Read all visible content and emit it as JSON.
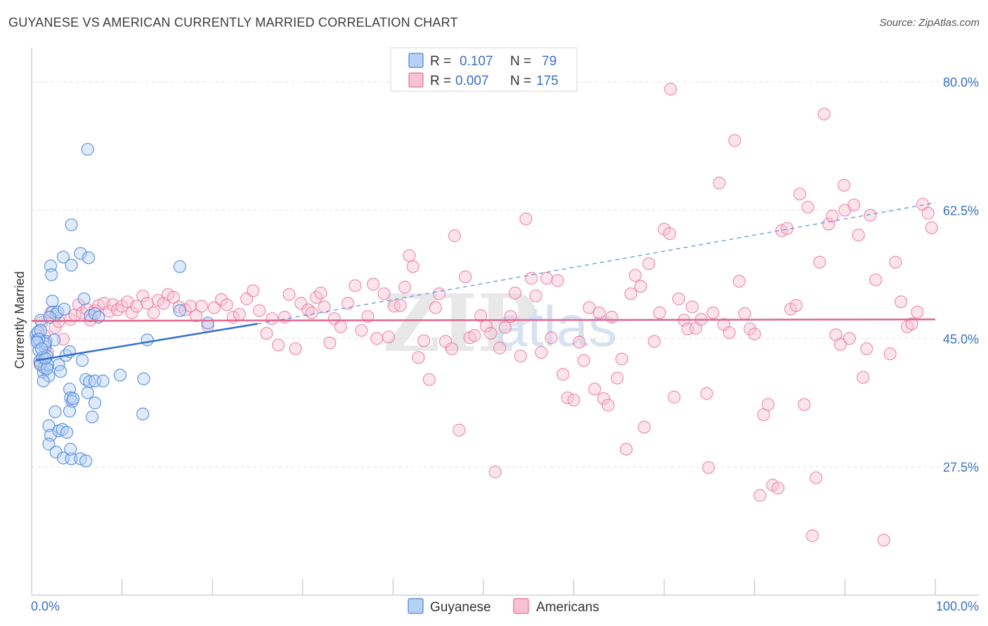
{
  "header": {
    "title": "GUYANESE VS AMERICAN CURRENTLY MARRIED CORRELATION CHART",
    "source": "Source: ZipAtlas.com"
  },
  "watermark": {
    "zip": "ZIP",
    "atlas": "atlas"
  },
  "colors": {
    "blue": "#4a86d8",
    "blue_fill": "#b7d0f3",
    "pink": "#e86f99",
    "pink_fill": "#f7c3d4",
    "axis_label": "#3a70c4",
    "grid": "#e2e2e2"
  },
  "legend_top": {
    "rows": [
      {
        "r_label": "R =",
        "r_value": "0.107",
        "n_label": "N =",
        "n_value": "79",
        "series": "Guyanese"
      },
      {
        "r_label": "R =",
        "r_value": "0.007",
        "n_label": "N =",
        "n_value": "175",
        "series": "Americans"
      }
    ]
  },
  "chart_data": {
    "type": "scatter",
    "title": "GUYANESE VS AMERICAN CURRENTLY MARRIED CORRELATION CHART",
    "xlabel": "",
    "ylabel": "Currently Married",
    "xlim": [
      0,
      100
    ],
    "ylim": [
      10,
      83.5
    ],
    "x_tick_labels": [
      "0.0%",
      "100.0%"
    ],
    "y_ticks": [
      27.5,
      45.0,
      62.5,
      80.0
    ],
    "y_tick_labels": [
      "27.5%",
      "45.0%",
      "62.5%",
      "80.0%"
    ],
    "grid": true,
    "legend": "bottom-center",
    "series": [
      {
        "name": "Guyanese",
        "r": 0.107,
        "n": 79,
        "trend": {
          "x0": 0.5,
          "y0": 42.0,
          "x1": 25,
          "y1": 47.0,
          "solid_until": 25,
          "dashed_to": 100,
          "y_at_100": 63.5
        },
        "points": [
          [
            0.5,
            45.5
          ],
          [
            0.6,
            44.8
          ],
          [
            0.7,
            45.9
          ],
          [
            0.8,
            43.4
          ],
          [
            0.9,
            41.9
          ],
          [
            1.0,
            47.5
          ],
          [
            1.0,
            46.1
          ],
          [
            1.2,
            42.4
          ],
          [
            1.3,
            40.4
          ],
          [
            1.4,
            41.0
          ],
          [
            1.5,
            43.8
          ],
          [
            1.6,
            44.6
          ],
          [
            1.7,
            42.6
          ],
          [
            1.8,
            41.4
          ],
          [
            1.9,
            39.9
          ],
          [
            2.1,
            54.9
          ],
          [
            2.2,
            53.7
          ],
          [
            2.3,
            50.1
          ],
          [
            2.3,
            48.6
          ],
          [
            2.5,
            44.8
          ],
          [
            2.7,
            48.3
          ],
          [
            2.9,
            48.6
          ],
          [
            3.0,
            41.4
          ],
          [
            3.2,
            40.5
          ],
          [
            3.5,
            56.1
          ],
          [
            3.6,
            49.0
          ],
          [
            3.8,
            42.7
          ],
          [
            4.2,
            43.2
          ],
          [
            4.2,
            38.1
          ],
          [
            4.3,
            36.9
          ],
          [
            4.5,
            36.4
          ],
          [
            4.6,
            36.8
          ],
          [
            4.2,
            35.1
          ],
          [
            2.6,
            35.0
          ],
          [
            1.9,
            33.1
          ],
          [
            2.1,
            31.8
          ],
          [
            3.0,
            32.4
          ],
          [
            3.4,
            32.6
          ],
          [
            3.9,
            32.2
          ],
          [
            1.9,
            30.6
          ],
          [
            2.7,
            29.5
          ],
          [
            3.5,
            28.7
          ],
          [
            4.4,
            28.6
          ],
          [
            4.3,
            29.9
          ],
          [
            5.4,
            28.6
          ],
          [
            6.0,
            28.3
          ],
          [
            4.4,
            60.5
          ],
          [
            4.4,
            55.0
          ],
          [
            5.4,
            56.6
          ],
          [
            6.3,
            56.0
          ],
          [
            6.2,
            70.8
          ],
          [
            5.8,
            50.4
          ],
          [
            6.5,
            48.1
          ],
          [
            7.0,
            48.4
          ],
          [
            7.4,
            47.9
          ],
          [
            5.6,
            42.0
          ],
          [
            6.0,
            39.4
          ],
          [
            6.4,
            39.1
          ],
          [
            7.0,
            39.2
          ],
          [
            6.2,
            37.6
          ],
          [
            7.0,
            36.2
          ],
          [
            6.7,
            34.3
          ],
          [
            7.9,
            39.2
          ],
          [
            9.8,
            40.0
          ],
          [
            12.4,
            39.5
          ],
          [
            12.8,
            44.8
          ],
          [
            16.4,
            54.8
          ],
          [
            12.3,
            34.7
          ],
          [
            16.4,
            48.8
          ],
          [
            19.5,
            47.1
          ],
          [
            1.5,
            44.3
          ],
          [
            0.8,
            44.9
          ],
          [
            1.0,
            41.5
          ],
          [
            1.3,
            39.2
          ],
          [
            1.7,
            40.9
          ],
          [
            2.0,
            47.9
          ],
          [
            1.5,
            42.3
          ],
          [
            0.6,
            44.5
          ],
          [
            1.1,
            43.6
          ]
        ]
      },
      {
        "name": "Americans",
        "r": 0.007,
        "n": 175,
        "trend": {
          "x0": 0,
          "y0": 47.4,
          "x1": 100,
          "y1": 47.6
        },
        "points": [
          [
            0.9,
            41.5
          ],
          [
            1.1,
            47.2
          ],
          [
            1.4,
            45.4
          ],
          [
            1.8,
            43.1
          ],
          [
            2.1,
            48.5
          ],
          [
            2.6,
            46.5
          ],
          [
            3.0,
            47.3
          ],
          [
            3.5,
            44.9
          ],
          [
            4.3,
            47.6
          ],
          [
            4.8,
            48.2
          ],
          [
            5.2,
            49.6
          ],
          [
            5.6,
            48.5
          ],
          [
            6.1,
            49.0
          ],
          [
            6.5,
            47.5
          ],
          [
            7.0,
            48.8
          ],
          [
            7.4,
            49.5
          ],
          [
            8.0,
            49.8
          ],
          [
            8.6,
            48.7
          ],
          [
            9.0,
            49.6
          ],
          [
            9.5,
            48.9
          ],
          [
            10.0,
            49.4
          ],
          [
            10.6,
            50.0
          ],
          [
            11.1,
            48.5
          ],
          [
            11.6,
            49.4
          ],
          [
            12.3,
            50.8
          ],
          [
            12.8,
            49.8
          ],
          [
            13.5,
            48.5
          ],
          [
            14.0,
            50.2
          ],
          [
            14.6,
            49.8
          ],
          [
            15.1,
            51.0
          ],
          [
            15.7,
            50.6
          ],
          [
            16.3,
            49.3
          ],
          [
            17.0,
            48.9
          ],
          [
            17.6,
            49.4
          ],
          [
            18.2,
            48.1
          ],
          [
            18.8,
            49.4
          ],
          [
            19.5,
            46.7
          ],
          [
            20.2,
            49.2
          ],
          [
            21.0,
            50.3
          ],
          [
            21.6,
            49.6
          ],
          [
            22.3,
            47.9
          ],
          [
            23.0,
            48.3
          ],
          [
            23.8,
            50.4
          ],
          [
            24.5,
            51.5
          ],
          [
            25.2,
            48.8
          ],
          [
            26.0,
            45.7
          ],
          [
            26.6,
            47.7
          ],
          [
            27.3,
            44.1
          ],
          [
            28.0,
            47.9
          ],
          [
            28.5,
            51.0
          ],
          [
            29.2,
            43.6
          ],
          [
            29.8,
            49.8
          ],
          [
            30.6,
            48.9
          ],
          [
            31.0,
            48.5
          ],
          [
            31.5,
            50.6
          ],
          [
            32.0,
            51.2
          ],
          [
            32.4,
            49.3
          ],
          [
            33.0,
            44.4
          ],
          [
            33.5,
            47.7
          ],
          [
            34.2,
            46.6
          ],
          [
            35.0,
            49.8
          ],
          [
            35.8,
            52.2
          ],
          [
            36.5,
            46.1
          ],
          [
            37.2,
            48.0
          ],
          [
            37.8,
            52.4
          ],
          [
            38.2,
            45.0
          ],
          [
            39.0,
            51.1
          ],
          [
            39.5,
            45.2
          ],
          [
            40.1,
            49.4
          ],
          [
            40.8,
            49.5
          ],
          [
            41.3,
            52.0
          ],
          [
            41.8,
            56.3
          ],
          [
            42.2,
            54.8
          ],
          [
            42.8,
            42.4
          ],
          [
            43.4,
            44.7
          ],
          [
            44.0,
            39.4
          ],
          [
            44.7,
            49.2
          ],
          [
            45.1,
            51.1
          ],
          [
            45.8,
            44.6
          ],
          [
            46.5,
            43.6
          ],
          [
            46.8,
            59.0
          ],
          [
            47.3,
            32.5
          ],
          [
            48.0,
            53.4
          ],
          [
            48.5,
            45.1
          ],
          [
            49.0,
            45.4
          ],
          [
            49.7,
            48.1
          ],
          [
            50.3,
            46.7
          ],
          [
            50.8,
            45.7
          ],
          [
            51.3,
            26.8
          ],
          [
            51.8,
            43.7
          ],
          [
            52.4,
            46.5
          ],
          [
            53.0,
            48.0
          ],
          [
            53.5,
            51.2
          ],
          [
            54.1,
            42.6
          ],
          [
            54.7,
            61.3
          ],
          [
            55.3,
            53.2
          ],
          [
            55.8,
            50.8
          ],
          [
            56.4,
            43.1
          ],
          [
            57.0,
            53.2
          ],
          [
            57.5,
            45.1
          ],
          [
            58.2,
            52.9
          ],
          [
            58.8,
            40.1
          ],
          [
            59.3,
            36.9
          ],
          [
            60.0,
            36.6
          ],
          [
            60.6,
            44.5
          ],
          [
            61.1,
            42.0
          ],
          [
            61.7,
            49.2
          ],
          [
            62.3,
            38.1
          ],
          [
            62.8,
            48.5
          ],
          [
            63.3,
            36.8
          ],
          [
            63.8,
            35.9
          ],
          [
            64.2,
            47.9
          ],
          [
            64.8,
            39.6
          ],
          [
            65.3,
            42.2
          ],
          [
            65.8,
            29.9
          ],
          [
            66.3,
            51.1
          ],
          [
            66.8,
            53.6
          ],
          [
            67.4,
            52.1
          ],
          [
            67.8,
            32.9
          ],
          [
            68.3,
            55.2
          ],
          [
            68.9,
            44.6
          ],
          [
            69.5,
            48.5
          ],
          [
            70.0,
            59.9
          ],
          [
            70.6,
            59.3
          ],
          [
            71.1,
            37.0
          ],
          [
            71.6,
            50.4
          ],
          [
            72.2,
            47.5
          ],
          [
            72.6,
            46.3
          ],
          [
            73.1,
            49.3
          ],
          [
            73.5,
            46.4
          ],
          [
            74.1,
            47.6
          ],
          [
            74.7,
            37.5
          ],
          [
            74.9,
            27.4
          ],
          [
            75.4,
            48.5
          ],
          [
            76.1,
            66.2
          ],
          [
            76.6,
            46.9
          ],
          [
            77.2,
            45.8
          ],
          [
            77.8,
            72.0
          ],
          [
            78.3,
            52.8
          ],
          [
            78.9,
            48.4
          ],
          [
            79.5,
            46.3
          ],
          [
            80.0,
            45.6
          ],
          [
            80.6,
            23.6
          ],
          [
            81.0,
            34.6
          ],
          [
            81.5,
            36.0
          ],
          [
            82.0,
            25.0
          ],
          [
            82.6,
            24.6
          ],
          [
            83.0,
            59.7
          ],
          [
            83.6,
            60.0
          ],
          [
            84.0,
            49.0
          ],
          [
            84.6,
            49.5
          ],
          [
            85.0,
            64.7
          ],
          [
            85.5,
            36.0
          ],
          [
            85.9,
            62.9
          ],
          [
            86.4,
            18.1
          ],
          [
            86.8,
            26.0
          ],
          [
            87.2,
            55.4
          ],
          [
            87.7,
            75.6
          ],
          [
            88.2,
            60.6
          ],
          [
            88.6,
            61.7
          ],
          [
            89.0,
            45.5
          ],
          [
            89.5,
            44.2
          ],
          [
            89.9,
            65.9
          ],
          [
            90.0,
            62.5
          ],
          [
            90.5,
            45.0
          ],
          [
            91.0,
            63.2
          ],
          [
            91.5,
            59.1
          ],
          [
            92.0,
            39.7
          ],
          [
            92.4,
            43.6
          ],
          [
            92.8,
            61.8
          ],
          [
            93.4,
            53.0
          ],
          [
            94.3,
            17.5
          ],
          [
            95.0,
            42.9
          ],
          [
            95.6,
            55.4
          ],
          [
            96.2,
            50.0
          ],
          [
            96.9,
            46.6
          ],
          [
            97.4,
            47.0
          ],
          [
            98.0,
            48.6
          ],
          [
            98.6,
            63.3
          ],
          [
            99.2,
            62.1
          ],
          [
            99.6,
            60.1
          ],
          [
            70.7,
            79.0
          ]
        ]
      }
    ]
  },
  "legend_bottom": {
    "items": [
      {
        "label": "Guyanese",
        "series": "Guyanese"
      },
      {
        "label": "Americans",
        "series": "Americans"
      }
    ]
  }
}
